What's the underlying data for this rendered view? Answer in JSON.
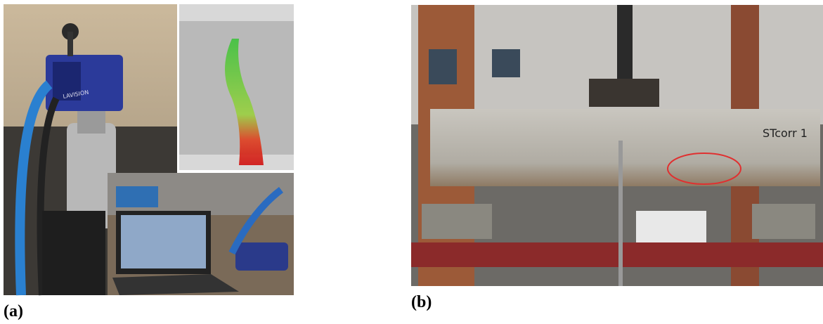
{
  "panels": [
    {
      "label": "(a)",
      "photo_text": "LAVISION"
    },
    {
      "label": "(b)",
      "photo_text": "STcorr 1"
    }
  ]
}
